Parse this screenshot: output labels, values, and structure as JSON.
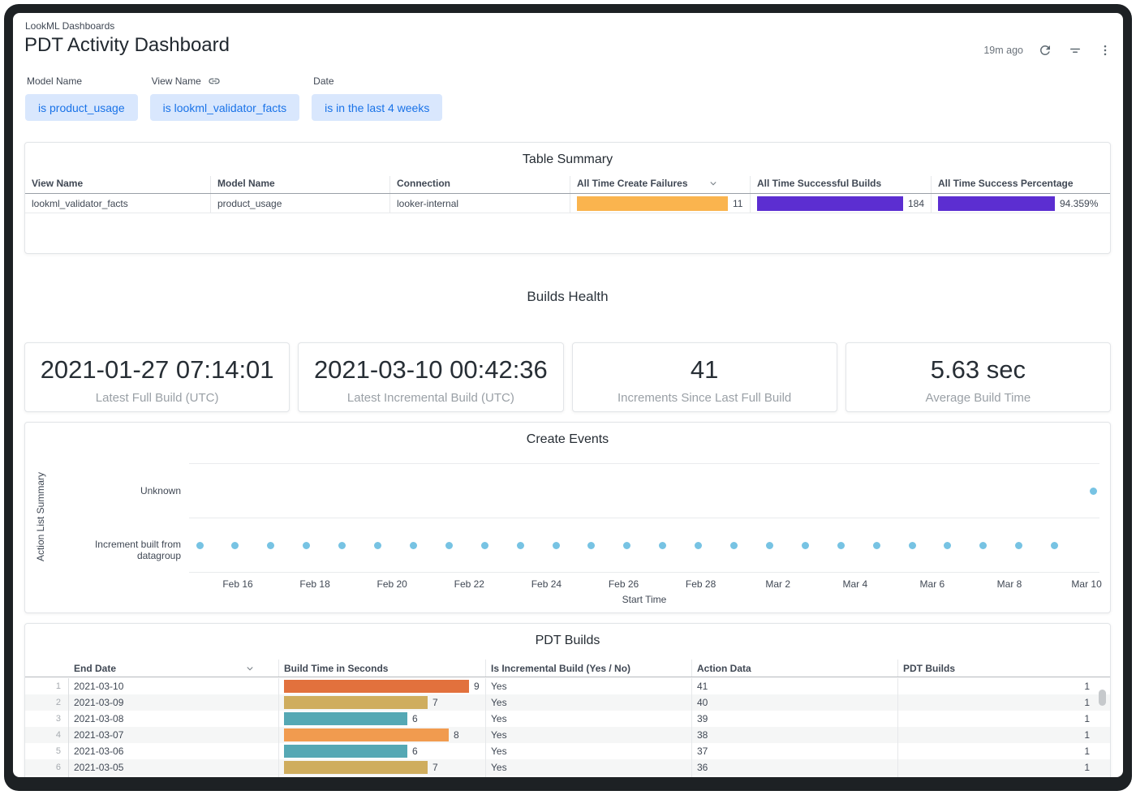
{
  "header": {
    "breadcrumb": "LookML Dashboards",
    "title": "PDT Activity Dashboard",
    "refresh_age": "19m ago"
  },
  "filters": [
    {
      "label": "Model Name",
      "value": "is product_usage",
      "link_icon": false
    },
    {
      "label": "View Name",
      "value": "is lookml_validator_facts",
      "link_icon": true
    },
    {
      "label": "Date",
      "value": "is in the last 4 weeks",
      "link_icon": false
    }
  ],
  "colors": {
    "chip_bg": "#d9e7fd",
    "chip_text": "#1a73e8",
    "amber": "#fab44e",
    "purple": "#5c2ed1",
    "dot_blue": "#77c3e3",
    "bar_orange_dark": "#e2713d",
    "bar_tan": "#cfad5e",
    "bar_teal": "#55a8b4",
    "bar_orange_light": "#f19b4f"
  },
  "table_summary": {
    "title": "Table Summary",
    "columns": [
      "View Name",
      "Model Name",
      "Connection",
      "All Time Create Failures",
      "All Time Successful Builds",
      "All Time Success Percentage"
    ],
    "sort_column_index": 3,
    "row": {
      "view_name": "lookml_validator_facts",
      "model_name": "product_usage",
      "connection": "looker-internal",
      "bars": [
        {
          "label": "11",
          "value": 11,
          "max": 11,
          "color": "#fab44e"
        },
        {
          "label": "184",
          "value": 184,
          "max": 184,
          "color": "#5c2ed1"
        },
        {
          "label": "94.359%",
          "value": 94.359,
          "max": 100,
          "color": "#5c2ed1"
        }
      ]
    }
  },
  "builds_health": {
    "title": "Builds Health",
    "kpis": [
      {
        "value": "2021-01-27 07:14:01",
        "label": "Latest Full Build (UTC)"
      },
      {
        "value": "2021-03-10 00:42:36",
        "label": "Latest Incremental Build (UTC)"
      },
      {
        "value": "41",
        "label": "Increments Since Last Full Build"
      },
      {
        "value": "5.63 sec",
        "label": "Average Build Time"
      }
    ]
  },
  "create_events": {
    "title": "Create Events",
    "y_axis_title": "Action List Summary",
    "x_axis_title": "Start Time",
    "categories": [
      "Unknown",
      "Increment built from datagroup"
    ],
    "x_ticks": [
      "Feb 16",
      "Feb 18",
      "Feb 20",
      "Feb 22",
      "Feb 24",
      "Feb 26",
      "Feb 28",
      "Mar 2",
      "Mar 4",
      "Mar 6",
      "Mar 8",
      "Mar 10"
    ],
    "increment_point_count": 25,
    "unknown_point_count": 1
  },
  "pdt_builds": {
    "title": "PDT Builds",
    "columns": [
      "End Date",
      "Build Time in Seconds",
      "Is Incremental Build (Yes / No)",
      "Action Data",
      "PDT Builds"
    ],
    "sort_column_index": 0,
    "rows": [
      {
        "num": "1",
        "end_date": "2021-03-10",
        "build_time": 9,
        "build_time_label": "9",
        "bar_color": "#e2713d",
        "is_incremental": "Yes",
        "action_data": "41",
        "pdt_builds": "1"
      },
      {
        "num": "2",
        "end_date": "2021-03-09",
        "build_time": 7,
        "build_time_label": "7",
        "bar_color": "#cfad5e",
        "is_incremental": "Yes",
        "action_data": "40",
        "pdt_builds": "1"
      },
      {
        "num": "3",
        "end_date": "2021-03-08",
        "build_time": 6,
        "build_time_label": "6",
        "bar_color": "#55a8b4",
        "is_incremental": "Yes",
        "action_data": "39",
        "pdt_builds": "1"
      },
      {
        "num": "4",
        "end_date": "2021-03-07",
        "build_time": 8,
        "build_time_label": "8",
        "bar_color": "#f19b4f",
        "is_incremental": "Yes",
        "action_data": "38",
        "pdt_builds": "1"
      },
      {
        "num": "5",
        "end_date": "2021-03-06",
        "build_time": 6,
        "build_time_label": "6",
        "bar_color": "#55a8b4",
        "is_incremental": "Yes",
        "action_data": "37",
        "pdt_builds": "1"
      },
      {
        "num": "6",
        "end_date": "2021-03-05",
        "build_time": 7,
        "build_time_label": "7",
        "bar_color": "#cfad5e",
        "is_incremental": "Yes",
        "action_data": "36",
        "pdt_builds": "1"
      },
      {
        "num": "",
        "end_date": "",
        "build_time": 7,
        "build_time_label": "",
        "bar_color": "#cfad5e",
        "is_incremental": "",
        "action_data": "",
        "pdt_builds": ""
      }
    ]
  },
  "chart_data": [
    {
      "type": "scatter",
      "title": "Create Events",
      "xlabel": "Start Time",
      "ylabel": "Action List Summary",
      "y_categories": [
        "Unknown",
        "Increment built from datagroup"
      ],
      "x_tick_labels": [
        "Feb 16",
        "Feb 18",
        "Feb 20",
        "Feb 22",
        "Feb 24",
        "Feb 26",
        "Feb 28",
        "Mar 2",
        "Mar 4",
        "Mar 6",
        "Mar 8",
        "Mar 10"
      ],
      "series": [
        {
          "name": "Increment built from datagroup",
          "y": "Increment built from datagroup",
          "point_count": 25,
          "x_span": [
            "Feb 15",
            "Mar 9"
          ],
          "spacing": "evenly spaced ~daily"
        },
        {
          "name": "Unknown",
          "y": "Unknown",
          "points_x": [
            "Mar 10"
          ]
        }
      ],
      "point_color": "#77c3e3",
      "grid": true,
      "legend": false
    },
    {
      "type": "bar",
      "title": "Build Time in Seconds (PDT Builds table)",
      "categories": [
        "2021-03-10",
        "2021-03-09",
        "2021-03-08",
        "2021-03-07",
        "2021-03-06",
        "2021-03-05"
      ],
      "values": [
        9,
        7,
        6,
        8,
        6,
        7
      ],
      "xlabel": "Build Time in Seconds",
      "ylabel": "End Date",
      "xlim": [
        0,
        9
      ]
    }
  ]
}
